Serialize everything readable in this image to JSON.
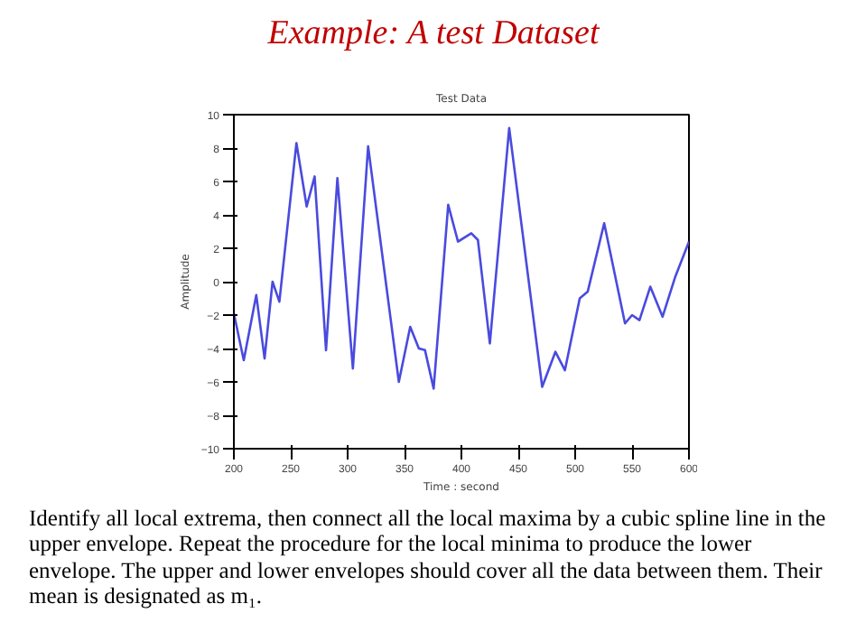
{
  "chart_data": {
    "type": "line",
    "title": "Test Data",
    "subtitle": "Example: A test Dataset",
    "xlabel": "Time : second",
    "ylabel": "Amplitude",
    "x": [
      200,
      208.7,
      219.7,
      227,
      234,
      240,
      255,
      264,
      271,
      281,
      291,
      304.6,
      318,
      345,
      355,
      362.6,
      368,
      375.6,
      388.4,
      397,
      408.7,
      414.5,
      425,
      442,
      471,
      482.6,
      491,
      504,
      511,
      525.5,
      543.8,
      550,
      556.5,
      566,
      576.8,
      588,
      600
    ],
    "series": [
      {
        "color": "#4a4adf",
        "values": [
          -1.9,
          -4.7,
          -0.8,
          -4.6,
          0,
          -1.2,
          8.3,
          4.5,
          6.3,
          -4.1,
          6.2,
          -5.2,
          8.1,
          -6.0,
          -2.7,
          -4.0,
          -4.1,
          -6.4,
          4.6,
          2.4,
          2.9,
          2.5,
          -3.7,
          9.2,
          -6.3,
          -4.2,
          -5.3,
          -1.0,
          -0.6,
          3.5,
          -2.5,
          -2.0,
          -2.3,
          -0.3,
          -2.1,
          0.3,
          2.4
        ]
      }
    ],
    "xlim": [
      200,
      600
    ],
    "xticks": [
      200,
      250,
      300,
      350,
      400,
      450,
      500,
      550,
      600
    ],
    "ylim": [
      -10,
      10
    ],
    "yticks": [
      -10,
      -8,
      -6,
      -4,
      -2,
      0,
      2,
      4,
      6,
      8,
      10
    ],
    "grid": false,
    "annotations": [
      "Identify all local extrema, then connect all the local maxima by a cubic spline line in the upper envelope.  Repeat the procedure for the local minima to produce the lower envelope.  The upper and lower envelopes should cover all the data between them. Their mean is designated as m₁."
    ]
  }
}
